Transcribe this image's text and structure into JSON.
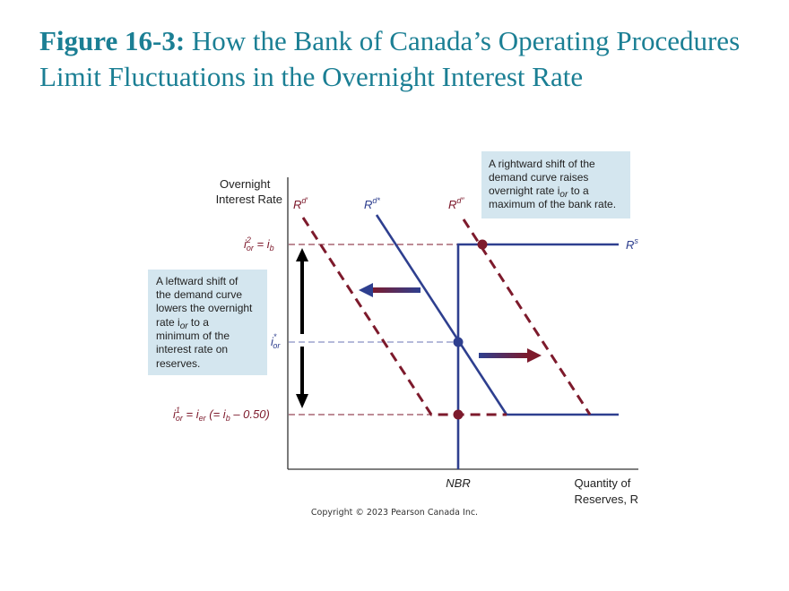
{
  "title": {
    "bold": "Figure 16-3:",
    "text": " How the Bank of Canada’s Operating Procedures Limit Fluctuations in the Overnight Interest Rate"
  },
  "axes": {
    "y_label_1": "Overnight",
    "y_label_2": "Interest Rate",
    "x_label_1": "Quantity of",
    "x_label_2": "Reserves, R",
    "x_tick": "NBR"
  },
  "y_ticks": {
    "top": {
      "i": "i",
      "sup": "2",
      "sub": "or",
      "rest": " = i",
      "sub2": "b"
    },
    "mid": {
      "i": "i",
      "sup": "*",
      "sub": "or"
    },
    "bottom": {
      "i": "i",
      "sup": "1",
      "sub": "or",
      "rest": " = i",
      "sub2": "er",
      "rest2": " (= i",
      "sub3": "b",
      "rest3": " – 0.50)"
    }
  },
  "curves": {
    "rd_left": {
      "base": "R",
      "sup": "d′"
    },
    "rd_star": {
      "base": "R",
      "sup": "d*"
    },
    "rd_right": {
      "base": "R",
      "sup": "d″"
    },
    "rs": {
      "base": "R",
      "sup": "s"
    }
  },
  "notes": {
    "right": [
      "A rightward shift of the",
      "demand curve raises",
      "overnight rate i",
      "or",
      " to a",
      "maximum of the bank rate."
    ],
    "left": [
      "A leftward shift of",
      "the demand curve",
      "lowers the overnight",
      "rate i",
      "or",
      " to a",
      "minimum of the",
      "interest rate on",
      "reserves."
    ]
  },
  "copyright": "Copyright © 2023 Pearson Canada Inc.",
  "colors": {
    "title": "#1b7f94",
    "blue": "#2e3f8f",
    "red": "#7d1a2c",
    "note_bg": "#d4e6ef"
  }
}
